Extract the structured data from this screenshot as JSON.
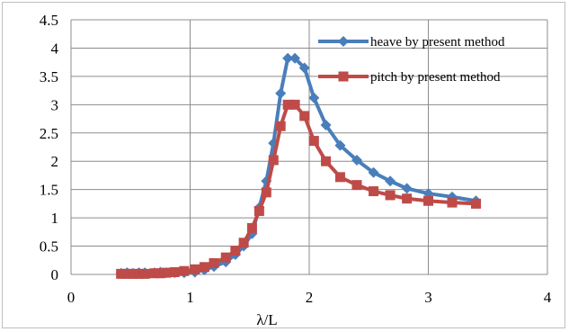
{
  "chart_data": {
    "type": "line",
    "xlabel": "λ/L",
    "ylabel": "",
    "xlim": [
      0,
      4
    ],
    "ylim": [
      0,
      4.5
    ],
    "xticks": [
      "0",
      "1",
      "2",
      "3",
      "4"
    ],
    "yticks": [
      "0",
      "0.5",
      "1",
      "1.5",
      "2",
      "2.5",
      "3",
      "3.5",
      "4",
      "4.5"
    ],
    "grid": true,
    "legend": "top-right",
    "series": [
      {
        "name": "heave by present method",
        "color": "#4a7ebb",
        "marker": "diamond",
        "x": [
          0.42,
          0.47,
          0.52,
          0.57,
          0.62,
          0.7,
          0.75,
          0.8,
          0.87,
          0.95,
          1.04,
          1.12,
          1.2,
          1.3,
          1.38,
          1.45,
          1.52,
          1.58,
          1.64,
          1.7,
          1.76,
          1.82,
          1.88,
          1.96,
          2.04,
          2.14,
          2.26,
          2.4,
          2.54,
          2.68,
          2.82,
          3.0,
          3.2,
          3.4
        ],
        "y": [
          0.02,
          0.03,
          0.02,
          0.03,
          0.03,
          0.03,
          0.04,
          0.03,
          0.03,
          0.03,
          0.04,
          0.08,
          0.14,
          0.22,
          0.35,
          0.5,
          0.72,
          1.18,
          1.65,
          2.32,
          3.2,
          3.82,
          3.82,
          3.65,
          3.12,
          2.64,
          2.28,
          2.02,
          1.8,
          1.65,
          1.52,
          1.43,
          1.37,
          1.3
        ]
      },
      {
        "name": "pitch by present method",
        "color": "#be4b48",
        "marker": "square",
        "x": [
          0.42,
          0.47,
          0.52,
          0.57,
          0.62,
          0.7,
          0.75,
          0.8,
          0.87,
          0.95,
          1.04,
          1.12,
          1.2,
          1.3,
          1.38,
          1.45,
          1.52,
          1.58,
          1.64,
          1.7,
          1.76,
          1.82,
          1.88,
          1.96,
          2.04,
          2.14,
          2.26,
          2.4,
          2.54,
          2.68,
          2.82,
          3.0,
          3.2,
          3.4
        ],
        "y": [
          0.01,
          0.01,
          0.01,
          0.01,
          0.01,
          0.02,
          0.02,
          0.03,
          0.04,
          0.06,
          0.09,
          0.13,
          0.2,
          0.3,
          0.42,
          0.56,
          0.82,
          1.12,
          1.45,
          2.02,
          2.62,
          3.0,
          3.0,
          2.8,
          2.36,
          2.0,
          1.72,
          1.58,
          1.47,
          1.4,
          1.34,
          1.3,
          1.27,
          1.25
        ]
      }
    ]
  }
}
